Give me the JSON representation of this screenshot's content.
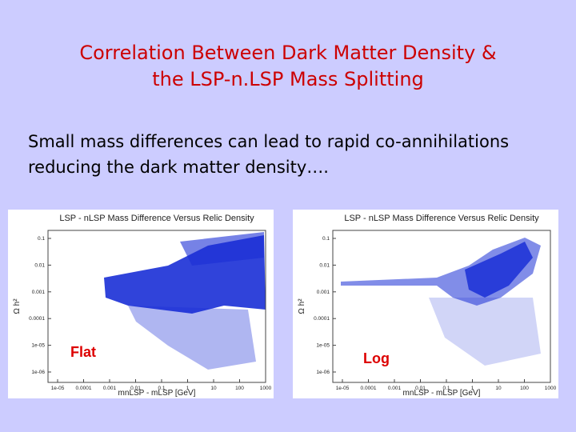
{
  "title": {
    "line1": "Correlation Between Dark Matter Density &",
    "line2": "the LSP-n.LSP Mass Splitting"
  },
  "body": {
    "lines": [
      "Small mass differences can lead to rapid co-annihilations",
      "reducing the dark matter density…."
    ]
  },
  "figures": [
    {
      "title": "LSP - nLSP Mass Difference Versus Relic Density",
      "x_label": "mnLSP - mLSP [GeV]",
      "y_label": "Ω h²",
      "x_ticks": [
        "1e-05",
        "0.0001",
        "0.001",
        "0.01",
        "0.1",
        "1",
        "10",
        "100",
        "1000"
      ],
      "y_ticks": [
        "0.1",
        "0.01",
        "0.001",
        "0.0001",
        "1e-05",
        "1e-06"
      ],
      "caption": "Flat"
    },
    {
      "title": "LSP - nLSP Mass Difference Versus Relic Density",
      "x_label": "mnLSP - mLSP [GeV]",
      "y_label": "Ω h²",
      "x_ticks": [
        "1e-05",
        "0.0001",
        "0.001",
        "0.01",
        "0.1",
        "1",
        "10",
        "100",
        "1000"
      ],
      "y_ticks": [
        "0.1",
        "0.01",
        "0.001",
        "0.0001",
        "1e-05",
        "1e-06"
      ],
      "caption": "Log"
    }
  ]
}
